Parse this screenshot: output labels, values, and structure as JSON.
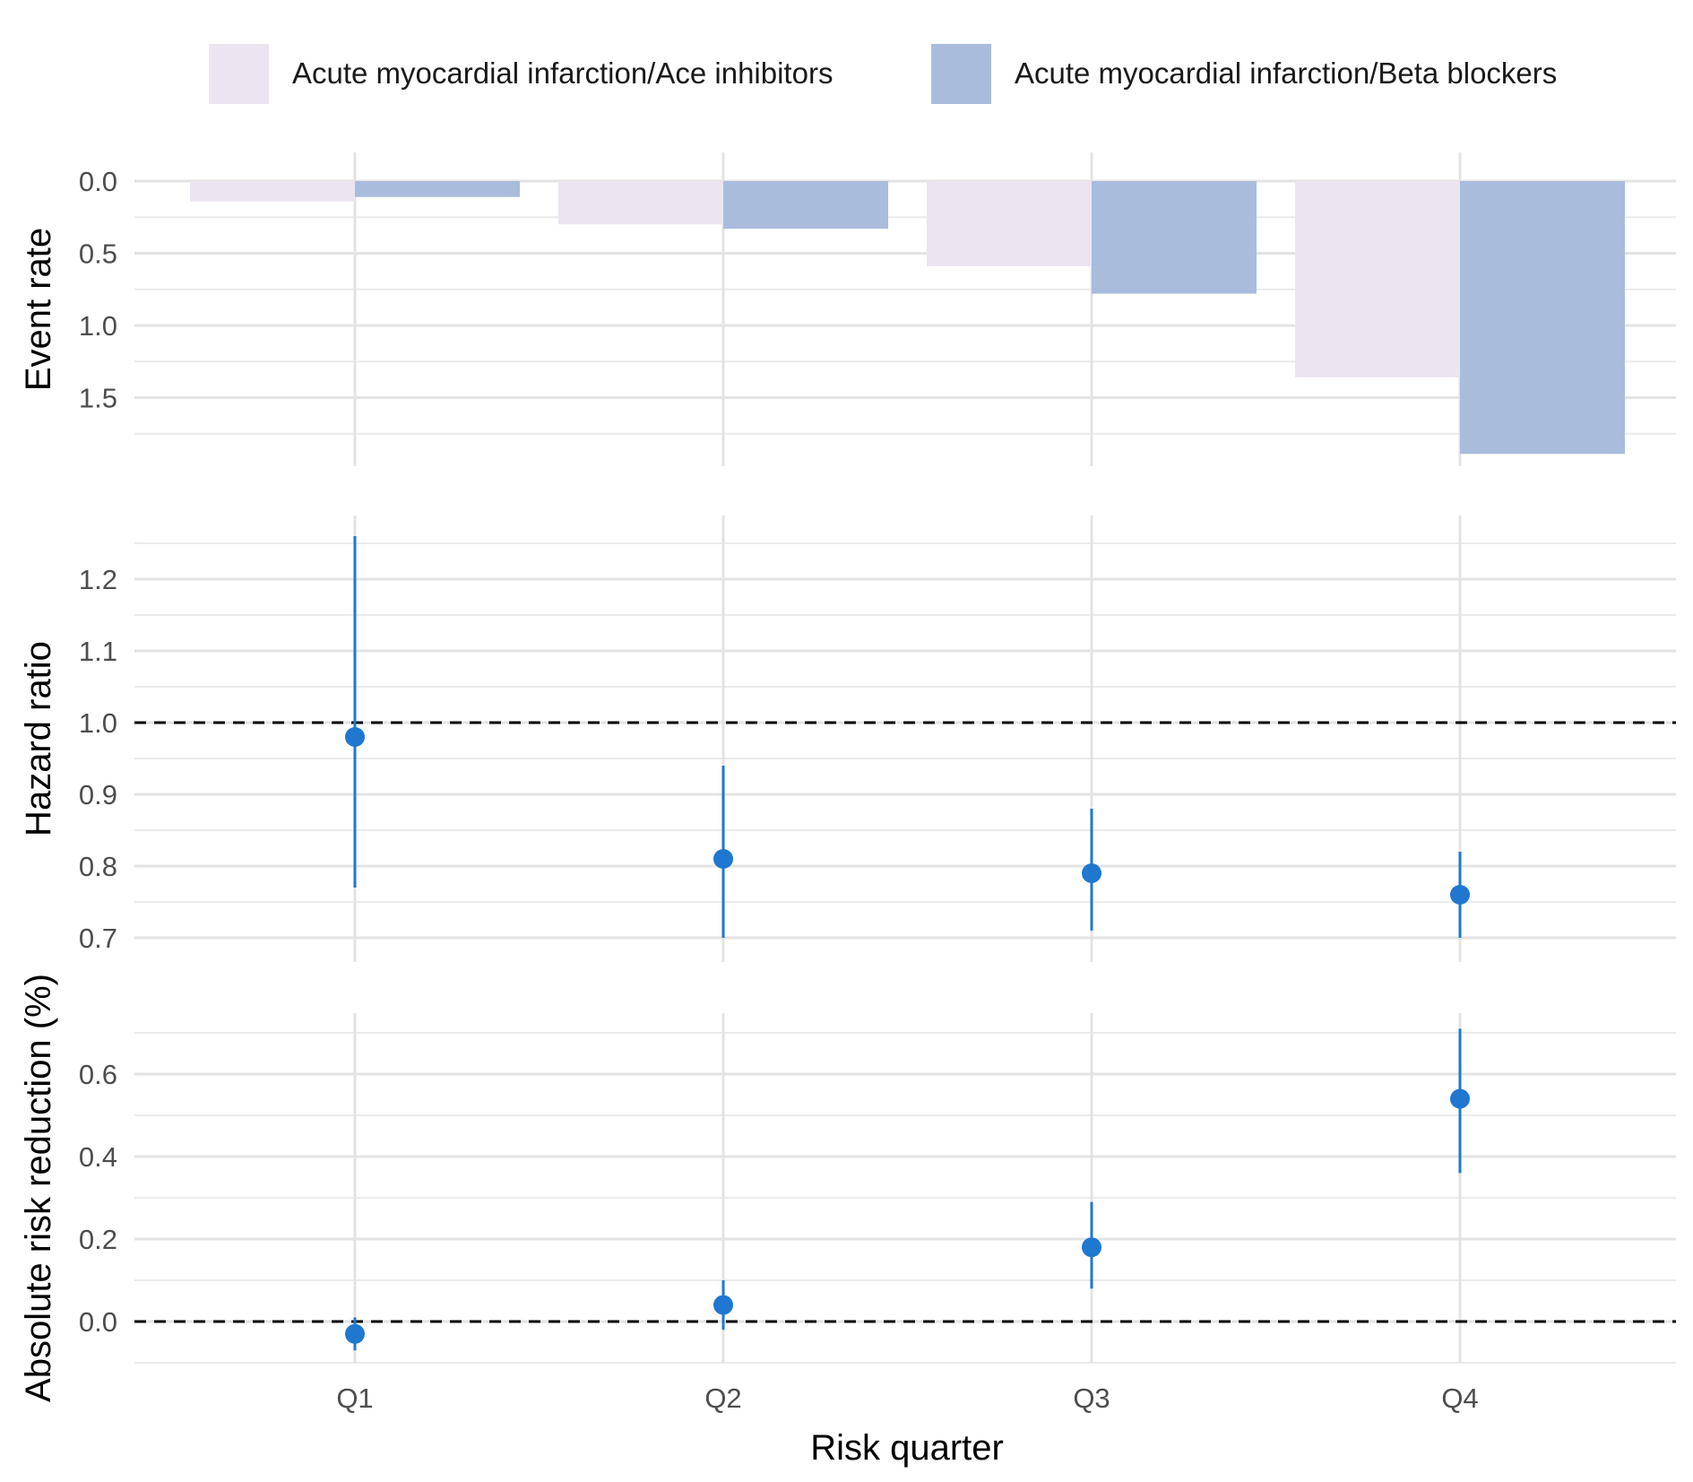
{
  "chart_data": {
    "type": "composite",
    "x_label": "Risk quarter",
    "categories": [
      "Q1",
      "Q2",
      "Q3",
      "Q4"
    ],
    "legend": [
      {
        "name": "Acute myocardial infarction/Ace inhibitors",
        "color": "#ebe5f2"
      },
      {
        "name": "Acute myocardial infarction/Beta blockers",
        "color": "#a9bcdc"
      }
    ],
    "panels": [
      {
        "id": "event-rate",
        "type": "bar",
        "ylabel": "Event rate",
        "y_reversed": true,
        "ylim": [
          0,
          1.9
        ],
        "yticks": [
          0.0,
          0.5,
          1.0,
          1.5
        ],
        "ytick_labels": [
          "0.0",
          "0.5",
          "1.0",
          "1.5"
        ],
        "series": [
          {
            "name": "Acute myocardial infarction/Ace inhibitors",
            "color": "#ebe5f2",
            "values": [
              0.14,
              0.3,
              0.59,
              1.36
            ]
          },
          {
            "name": "Acute myocardial infarction/Beta blockers",
            "color": "#a9bcdc",
            "values": [
              0.11,
              0.33,
              0.78,
              1.89
            ]
          }
        ]
      },
      {
        "id": "hazard-ratio",
        "type": "pointrange",
        "ylabel": "Hazard ratio",
        "ylim": [
          0.67,
          1.28
        ],
        "yticks": [
          0.7,
          0.8,
          0.9,
          1.0,
          1.1,
          1.2
        ],
        "ytick_labels": [
          "0.7",
          "0.8",
          "0.9",
          "1.0",
          "1.1",
          "1.2"
        ],
        "reference_line": 1.0,
        "color": "#1f77d0",
        "estimates": [
          0.98,
          0.81,
          0.79,
          0.76
        ],
        "lower": [
          0.77,
          0.7,
          0.71,
          0.7
        ],
        "upper": [
          1.26,
          0.94,
          0.88,
          0.82
        ]
      },
      {
        "id": "absolute-risk-reduction",
        "type": "pointrange",
        "ylabel": "Absolute risk reduction (%)",
        "ylim": [
          -0.1,
          0.75
        ],
        "yticks": [
          0.0,
          0.2,
          0.4,
          0.6
        ],
        "ytick_labels": [
          "0.0",
          "0.2",
          "0.4",
          "0.6"
        ],
        "reference_line": 0.0,
        "color": "#1f77d0",
        "estimates": [
          -0.03,
          0.04,
          0.18,
          0.54
        ],
        "lower": [
          -0.07,
          -0.02,
          0.08,
          0.36
        ],
        "upper": [
          0.01,
          0.1,
          0.29,
          0.71
        ]
      }
    ]
  }
}
